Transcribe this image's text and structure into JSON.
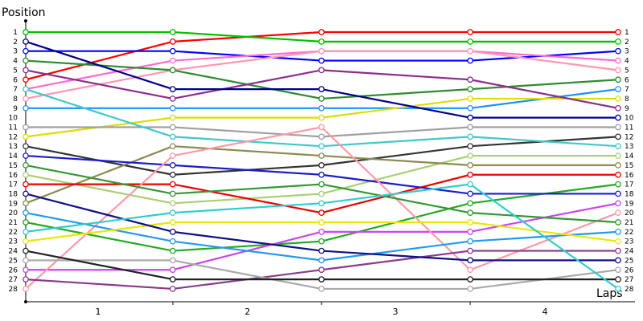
{
  "chart_data": {
    "type": "line",
    "ylabel": "Position",
    "xlabel": "Laps",
    "x_ticks": [
      "1",
      "2",
      "3",
      "4"
    ],
    "x_points": [
      0,
      1,
      2,
      3,
      4
    ],
    "y_range": [
      1,
      28
    ],
    "y_inverted": true,
    "y_ticks": [
      "1",
      "2",
      "3",
      "4",
      "5",
      "6",
      "7",
      "8",
      "9",
      "10",
      "11",
      "12",
      "13",
      "14",
      "15",
      "16",
      "17",
      "18",
      "19",
      "20",
      "21",
      "22",
      "23",
      "24",
      "25",
      "26",
      "27",
      "28"
    ],
    "right_labels": [
      "1",
      "2",
      "3",
      "4",
      "5",
      "6",
      "7",
      "8",
      "9",
      "10",
      "11",
      "12",
      "13",
      "14",
      "15",
      "16",
      "17",
      "18",
      "19",
      "20",
      "21",
      "22",
      "23",
      "24",
      "25",
      "26",
      "27",
      "28"
    ],
    "grid": false,
    "series": [
      {
        "color": "#ff0000",
        "positions": [
          6,
          2,
          1,
          1,
          1
        ]
      },
      {
        "color": "#00c000",
        "positions": [
          1,
          1,
          2,
          2,
          2
        ]
      },
      {
        "color": "#0000ff",
        "positions": [
          3,
          3,
          4,
          4,
          3
        ]
      },
      {
        "color": "#ff69d0",
        "positions": [
          7,
          4,
          3,
          3,
          4
        ]
      },
      {
        "color": "#ff96b4",
        "positions": [
          8,
          5,
          3,
          3,
          5
        ]
      },
      {
        "color": "#2e8b2e",
        "positions": [
          4,
          5,
          8,
          7,
          6
        ]
      },
      {
        "color": "#1e90ff",
        "positions": [
          9,
          9,
          9,
          9,
          7
        ]
      },
      {
        "color": "#dddd00",
        "positions": [
          12,
          10,
          10,
          8,
          8
        ]
      },
      {
        "color": "#8b2f8b",
        "positions": [
          5,
          8,
          5,
          6,
          9
        ]
      },
      {
        "color": "#00008b",
        "positions": [
          2,
          7,
          7,
          10,
          10
        ]
      },
      {
        "color": "#a0a0a0",
        "positions": [
          11,
          11,
          12,
          11,
          11
        ]
      },
      {
        "color": "#333333",
        "positions": [
          13,
          16,
          15,
          13,
          12
        ]
      },
      {
        "color": "#40c8c8",
        "positions": [
          7,
          12,
          13,
          12,
          13
        ]
      },
      {
        "color": "#a8d070",
        "positions": [
          16,
          19,
          18,
          14,
          14
        ]
      },
      {
        "color": "#8b8b50",
        "positions": [
          19,
          13,
          14,
          15,
          15
        ]
      },
      {
        "color": "#ee0000",
        "positions": [
          17,
          17,
          20,
          16,
          16
        ]
      },
      {
        "color": "#22aa22",
        "positions": [
          21,
          24,
          23,
          19,
          17
        ]
      },
      {
        "color": "#1c1ccc",
        "positions": [
          14,
          15,
          16,
          18,
          18
        ]
      },
      {
        "color": "#cc44ee",
        "positions": [
          26,
          26,
          22,
          22,
          19
        ]
      },
      {
        "color": "#ff99aa",
        "positions": [
          28,
          14,
          11,
          26,
          20
        ]
      },
      {
        "color": "#339933",
        "positions": [
          15,
          18,
          17,
          20,
          21
        ]
      },
      {
        "color": "#2299ee",
        "positions": [
          20,
          23,
          25,
          23,
          22
        ]
      },
      {
        "color": "#e8e800",
        "positions": [
          23,
          21,
          21,
          21,
          23
        ]
      },
      {
        "color": "#8b3a8b",
        "positions": [
          27,
          28,
          26,
          24,
          24
        ]
      },
      {
        "color": "#101088",
        "positions": [
          18,
          22,
          24,
          25,
          25
        ]
      },
      {
        "color": "#aaaaaa",
        "positions": [
          25,
          25,
          28,
          28,
          26
        ]
      },
      {
        "color": "#222222",
        "positions": [
          24,
          27,
          27,
          27,
          27
        ]
      },
      {
        "color": "#33cccc",
        "positions": [
          22,
          20,
          19,
          17,
          28
        ]
      }
    ]
  }
}
